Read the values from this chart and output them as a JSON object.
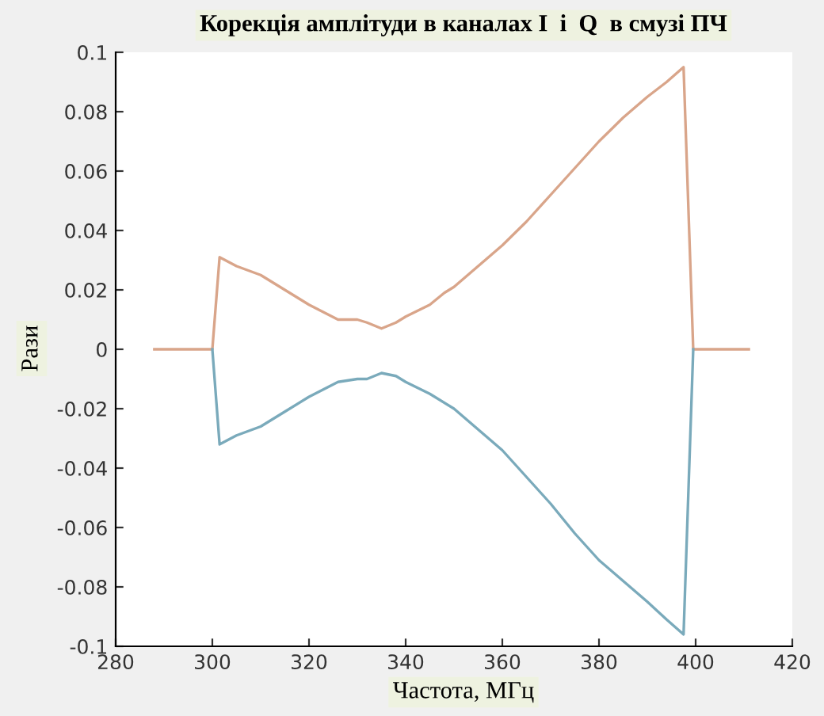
{
  "chart_data": {
    "type": "line",
    "title": "Корекція амплітуди в каналах I  і  Q  в смузі ПЧ",
    "xlabel": "Частота, МГц",
    "ylabel": "Рази",
    "xlim": [
      280,
      420
    ],
    "xticks": [
      280,
      300,
      320,
      340,
      360,
      380,
      400,
      420
    ],
    "ylim": [
      -0.1,
      0.1
    ],
    "yticks": [
      -0.1,
      -0.08,
      -0.06,
      -0.04,
      -0.02,
      0,
      0.02,
      0.04,
      0.06,
      0.08,
      0.1
    ],
    "grid": false,
    "legend": false,
    "series": [
      {
        "color": "#d9a58a",
        "x": [
          288,
          300,
          301.5,
          305,
          310,
          315,
          320,
          326,
          330,
          332,
          335,
          338,
          340,
          345,
          348,
          350,
          355,
          360,
          365,
          370,
          375,
          380,
          385,
          390,
          394,
          397.5,
          399.5,
          411
        ],
        "values": [
          0,
          0,
          0.031,
          0.028,
          0.025,
          0.02,
          0.015,
          0.01,
          0.01,
          0.009,
          0.007,
          0.009,
          0.011,
          0.015,
          0.019,
          0.021,
          0.028,
          0.035,
          0.043,
          0.052,
          0.061,
          0.07,
          0.078,
          0.085,
          0.09,
          0.095,
          0,
          0
        ]
      },
      {
        "color": "#7aaabb",
        "x": [
          300,
          301.5,
          305,
          310,
          315,
          320,
          326,
          330,
          332,
          335,
          338,
          340,
          345,
          350,
          355,
          360,
          365,
          370,
          375,
          380,
          385,
          390,
          394,
          397.5,
          399.5
        ],
        "values": [
          0,
          -0.032,
          -0.029,
          -0.026,
          -0.021,
          -0.016,
          -0.011,
          -0.01,
          -0.01,
          -0.008,
          -0.009,
          -0.011,
          -0.015,
          -0.02,
          -0.027,
          -0.034,
          -0.043,
          -0.052,
          -0.062,
          -0.071,
          -0.078,
          -0.085,
          -0.091,
          -0.096,
          0
        ]
      }
    ]
  }
}
